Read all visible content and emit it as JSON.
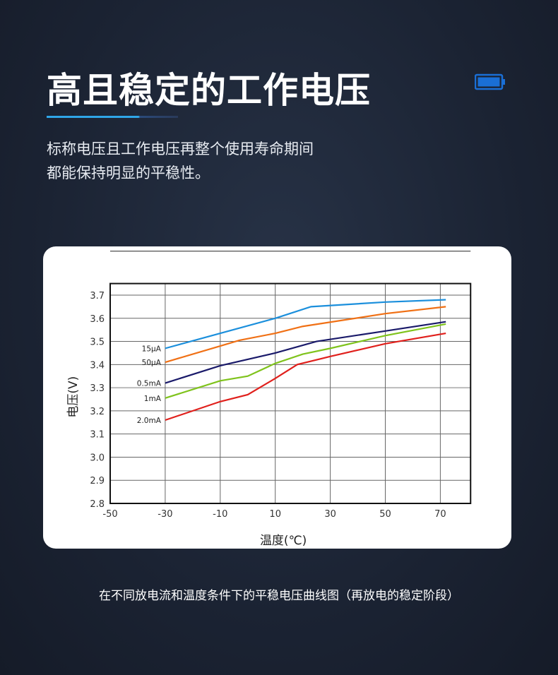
{
  "header": {
    "title": "高且稳定的工作电压",
    "battery_icon": "battery-full-icon",
    "accent": "#2fa6e8"
  },
  "description": [
    "标称电压且工作电压再整个使用寿命期间",
    "都能保持明显的平稳性。"
  ],
  "caption": "在不同放电流和温度条件下的平稳电压曲线图（再放电的稳定阶段）",
  "chart_data": {
    "type": "line",
    "xlabel": "温度(℃)",
    "ylabel": "电压(V)",
    "xlim": [
      -50,
      81
    ],
    "ylim": [
      2.8,
      3.75
    ],
    "xticks": [
      -50,
      -30,
      -10,
      10,
      30,
      50,
      70
    ],
    "yticks": [
      2.8,
      2.9,
      3.0,
      3.1,
      3.2,
      3.3,
      3.4,
      3.5,
      3.6,
      3.7
    ],
    "grid": true,
    "series": [
      {
        "name": "15μA",
        "color": "#1b8fdc",
        "points": [
          [
            -30,
            3.47
          ],
          [
            -10,
            3.535
          ],
          [
            10,
            3.6
          ],
          [
            23,
            3.65
          ],
          [
            50,
            3.67
          ],
          [
            72,
            3.68
          ]
        ]
      },
      {
        "name": "50μA",
        "color": "#f07015",
        "points": [
          [
            -30,
            3.41
          ],
          [
            -10,
            3.48
          ],
          [
            -3,
            3.505
          ],
          [
            10,
            3.535
          ],
          [
            20,
            3.565
          ],
          [
            50,
            3.62
          ],
          [
            72,
            3.65
          ]
        ]
      },
      {
        "name": "0.5mA",
        "color": "#1a1a6a",
        "points": [
          [
            -30,
            3.32
          ],
          [
            -10,
            3.395
          ],
          [
            10,
            3.45
          ],
          [
            25,
            3.5
          ],
          [
            50,
            3.545
          ],
          [
            72,
            3.585
          ]
        ]
      },
      {
        "name": "1mA",
        "color": "#7fc31c",
        "points": [
          [
            -30,
            3.255
          ],
          [
            -10,
            3.33
          ],
          [
            0,
            3.35
          ],
          [
            10,
            3.405
          ],
          [
            20,
            3.445
          ],
          [
            30,
            3.47
          ],
          [
            50,
            3.525
          ],
          [
            72,
            3.575
          ]
        ]
      },
      {
        "name": "2.0mA",
        "color": "#e0201c",
        "points": [
          [
            -30,
            3.16
          ],
          [
            -10,
            3.24
          ],
          [
            0,
            3.27
          ],
          [
            10,
            3.34
          ],
          [
            18,
            3.4
          ],
          [
            30,
            3.435
          ],
          [
            50,
            3.49
          ],
          [
            72,
            3.535
          ]
        ]
      }
    ]
  }
}
